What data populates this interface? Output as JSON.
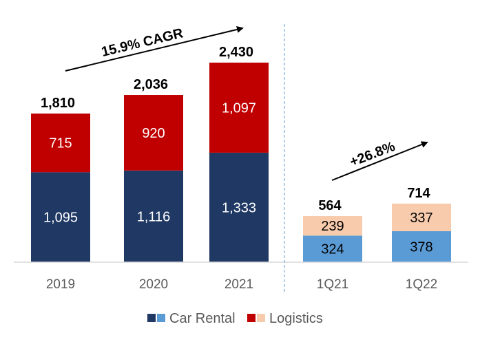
{
  "chart_data": {
    "type": "bar",
    "stacked": true,
    "categories": [
      "2019",
      "2020",
      "2021",
      "1Q21",
      "1Q22"
    ],
    "series": [
      {
        "name": "Car Rental",
        "values": [
          1095,
          1116,
          1333,
          324,
          378
        ],
        "labels": [
          "1,095",
          "1,116",
          "1,333",
          "324",
          "378"
        ],
        "colors": [
          "#1F3864",
          "#1F3864",
          "#1F3864",
          "#5B9BD5",
          "#5B9BD5"
        ],
        "label_color": [
          "#ffffff",
          "#ffffff",
          "#ffffff",
          "#000000",
          "#000000"
        ]
      },
      {
        "name": "Logistics",
        "values": [
          715,
          920,
          1097,
          239,
          337
        ],
        "labels": [
          "715",
          "920",
          "1,097",
          "239",
          "337"
        ],
        "colors": [
          "#C00000",
          "#C00000",
          "#C00000",
          "#F8CBAD",
          "#F8CBAD"
        ],
        "label_color": [
          "#ffffff",
          "#ffffff",
          "#ffffff",
          "#000000",
          "#000000"
        ]
      }
    ],
    "totals": [
      1810,
      2036,
      2430,
      564,
      714
    ],
    "total_labels": [
      "1,810",
      "2,036",
      "2,430",
      "564",
      "714"
    ],
    "groups": [
      {
        "name": "annual",
        "categories": [
          "2019",
          "2020",
          "2021"
        ],
        "ylim": [
          0,
          2430
        ]
      },
      {
        "name": "quarterly",
        "categories": [
          "1Q21",
          "1Q22"
        ],
        "ylim": [
          0,
          714
        ]
      }
    ],
    "annotations": [
      {
        "text": "15.9% CAGR",
        "from": "2019",
        "to": "2021"
      },
      {
        "text": "+26.8%",
        "from": "1Q21",
        "to": "1Q22"
      }
    ],
    "legend": {
      "position": "bottom",
      "entries": [
        {
          "label": "Car Rental",
          "colors": [
            "#1F3864",
            "#5B9BD5"
          ]
        },
        {
          "label": "Logistics",
          "colors": [
            "#C00000",
            "#F8CBAD"
          ]
        }
      ]
    },
    "separator": "dashed",
    "grid": false,
    "title": "",
    "xlabel": "",
    "ylabel": ""
  }
}
